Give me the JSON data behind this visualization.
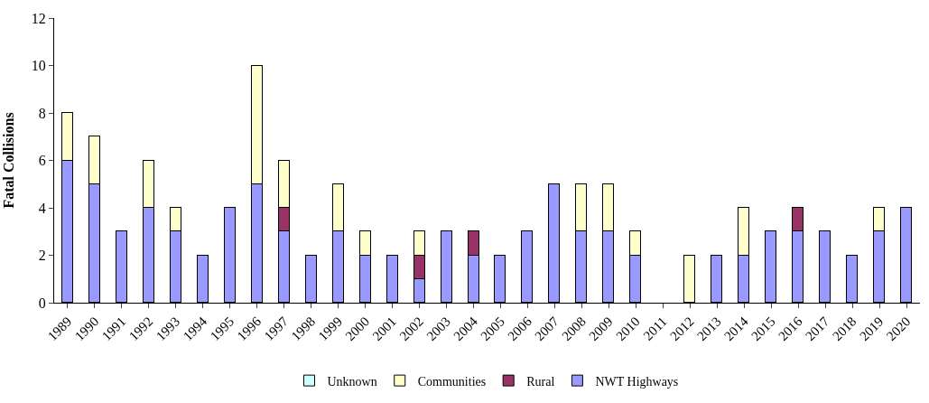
{
  "chart_data": {
    "type": "bar",
    "stacked": true,
    "ylabel": "Fatal Collisions",
    "ylim": [
      0,
      12
    ],
    "yticks": [
      0,
      2,
      4,
      6,
      8,
      10,
      12
    ],
    "legend": "bottom",
    "categories": [
      "1989",
      "1990",
      "1991",
      "1992",
      "1993",
      "1994",
      "1995",
      "1996",
      "1997",
      "1998",
      "1999",
      "2000",
      "2001",
      "2002",
      "2003",
      "2004",
      "2005",
      "2006",
      "2007",
      "2008",
      "2009",
      "2010",
      "2011",
      "2012",
      "2013",
      "2014",
      "2015",
      "2016",
      "2017",
      "2018",
      "2019",
      "2020"
    ],
    "series": [
      {
        "name": "NWT Highways",
        "color": "#9999ff",
        "values": [
          6,
          5,
          3,
          4,
          3,
          2,
          4,
          5,
          3,
          2,
          3,
          2,
          2,
          1,
          3,
          2,
          2,
          3,
          5,
          3,
          3,
          2,
          null,
          null,
          2,
          2,
          3,
          3,
          3,
          2,
          3,
          4
        ]
      },
      {
        "name": "Rural",
        "color": "#993366",
        "values": [
          null,
          null,
          null,
          null,
          null,
          null,
          null,
          null,
          1,
          null,
          null,
          null,
          null,
          1,
          null,
          1,
          null,
          null,
          null,
          null,
          null,
          null,
          null,
          null,
          null,
          null,
          null,
          1,
          null,
          null,
          null,
          null
        ]
      },
      {
        "name": "Communities",
        "color": "#ffffcc",
        "values": [
          2,
          2,
          null,
          2,
          1,
          null,
          null,
          5,
          2,
          null,
          2,
          1,
          null,
          1,
          null,
          null,
          null,
          null,
          null,
          2,
          2,
          1,
          null,
          2,
          null,
          2,
          null,
          null,
          null,
          null,
          1,
          null
        ]
      },
      {
        "name": "Unknown",
        "color": "#ccffff",
        "values": [
          null,
          null,
          null,
          null,
          null,
          null,
          null,
          null,
          null,
          null,
          null,
          null,
          null,
          null,
          null,
          null,
          null,
          null,
          null,
          null,
          null,
          null,
          null,
          null,
          null,
          null,
          null,
          null,
          null,
          null,
          null,
          null
        ]
      }
    ]
  }
}
